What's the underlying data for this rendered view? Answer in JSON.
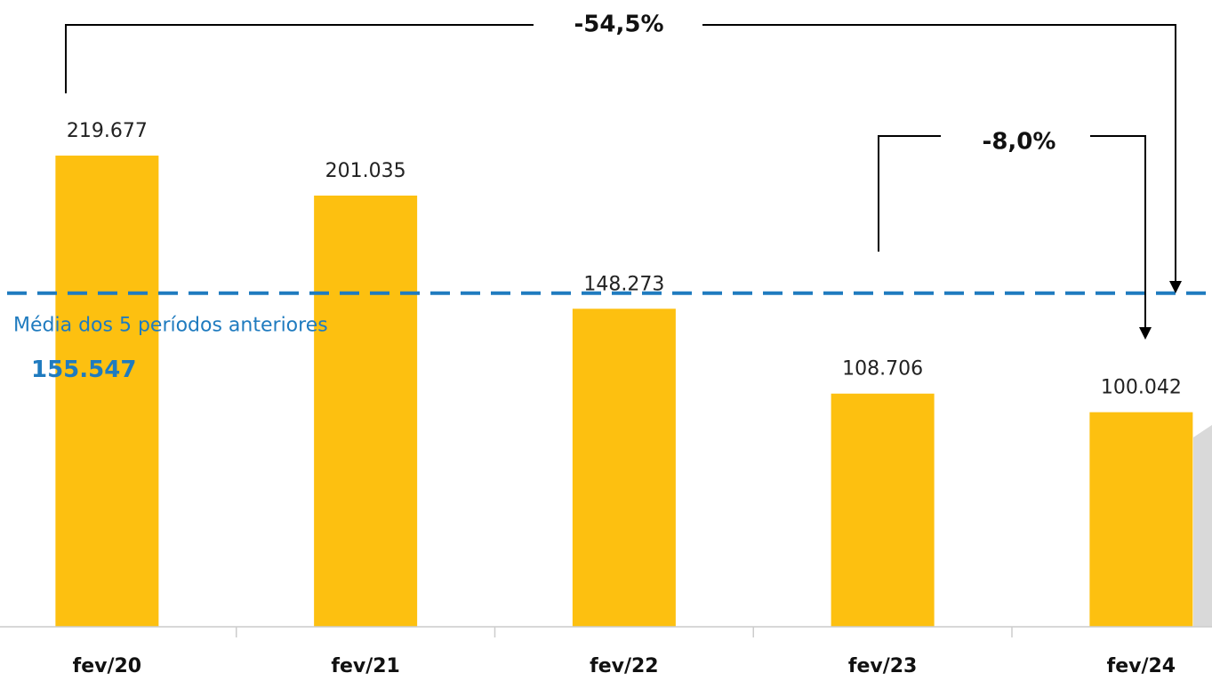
{
  "chart_data": {
    "type": "bar",
    "categories": [
      "fev/20",
      "fev/21",
      "fev/22",
      "fev/23",
      "fev/24"
    ],
    "values": [
      219677,
      201035,
      148273,
      108706,
      100042
    ],
    "value_labels": [
      "219.677",
      "201.035",
      "148.273",
      "108.706",
      "100.042"
    ],
    "color": "#fdc010",
    "ylim": [
      0,
      240000
    ],
    "average": {
      "value": 155547,
      "label": "155.547",
      "text": "Média dos 5 períodos anteriores",
      "color": "#1f7bbf"
    },
    "annotations": [
      "-54,5%",
      "-8,0%"
    ]
  }
}
